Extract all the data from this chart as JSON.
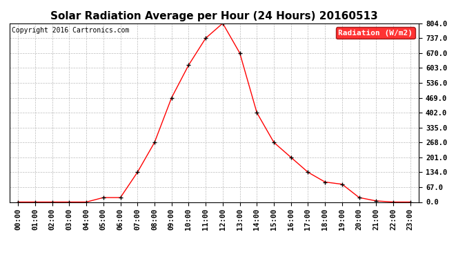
{
  "title": "Solar Radiation Average per Hour (24 Hours) 20160513",
  "copyright": "Copyright 2016 Cartronics.com",
  "legend_label": "Radiation (W/m2)",
  "hours": [
    "00:00",
    "01:00",
    "02:00",
    "03:00",
    "04:00",
    "05:00",
    "06:00",
    "07:00",
    "08:00",
    "09:00",
    "10:00",
    "11:00",
    "12:00",
    "13:00",
    "14:00",
    "15:00",
    "16:00",
    "17:00",
    "18:00",
    "19:00",
    "20:00",
    "21:00",
    "22:00",
    "23:00"
  ],
  "values": [
    0,
    0,
    0,
    0,
    0,
    20,
    20,
    134,
    268,
    469,
    616,
    737,
    804,
    670,
    402,
    268,
    201,
    134,
    90,
    80,
    20,
    5,
    0,
    0
  ],
  "yticks": [
    0.0,
    67.0,
    134.0,
    201.0,
    268.0,
    335.0,
    402.0,
    469.0,
    536.0,
    603.0,
    670.0,
    737.0,
    804.0
  ],
  "ymax": 804.0,
  "ymin": 0.0,
  "line_color": "red",
  "marker_color": "black",
  "bg_color": "white",
  "grid_color": "#bbbbbb",
  "legend_bg": "red",
  "legend_text_color": "white",
  "title_fontsize": 11,
  "copyright_fontsize": 7,
  "tick_fontsize": 7.5,
  "legend_fontsize": 8
}
